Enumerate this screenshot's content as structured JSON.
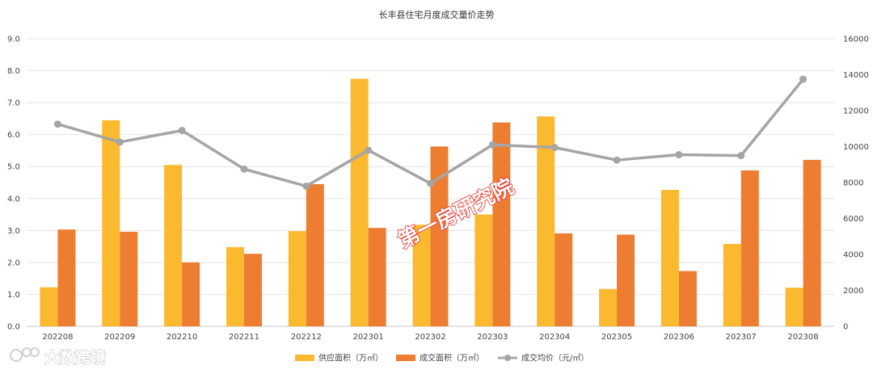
{
  "chart_data": {
    "type": "bar",
    "title": "长丰县住宅月度成交量价走势",
    "categories": [
      "202208",
      "202209",
      "202210",
      "202211",
      "202212",
      "202301",
      "202302",
      "202303",
      "202304",
      "202305",
      "202306",
      "202307",
      "202308"
    ],
    "series": [
      {
        "name": "供应面积（万㎡）",
        "type": "bar",
        "axis": "left",
        "color": "#FBB930",
        "values": [
          1.22,
          6.45,
          5.05,
          2.48,
          2.98,
          7.75,
          3.18,
          3.5,
          6.57,
          1.17,
          4.27,
          2.58,
          1.21
        ]
      },
      {
        "name": "成交面积（万㎡）",
        "type": "bar",
        "axis": "left",
        "color": "#ED7D31",
        "values": [
          3.03,
          2.96,
          2.0,
          2.27,
          4.45,
          3.08,
          5.63,
          6.38,
          2.91,
          2.87,
          1.73,
          4.88,
          5.21
        ]
      },
      {
        "name": "成交均价（元/㎡）",
        "type": "line",
        "axis": "right",
        "color": "#A5A5A5",
        "values": [
          11250,
          10250,
          10900,
          8750,
          7800,
          9800,
          7950,
          10100,
          9950,
          9250,
          9550,
          9500,
          13750
        ]
      }
    ],
    "y_left": {
      "range": [
        0,
        9
      ],
      "ticks": [
        "0.0",
        "1.0",
        "2.0",
        "3.0",
        "4.0",
        "5.0",
        "6.0",
        "7.0",
        "8.0",
        "9.0"
      ]
    },
    "y_right": {
      "range": [
        0,
        16000
      ],
      "ticks": [
        "0",
        "2000",
        "4000",
        "6000",
        "8000",
        "10000",
        "12000",
        "14000",
        "16000"
      ]
    },
    "grid": true,
    "legend_position": "bottom"
  },
  "watermark": "第一房研究院",
  "logo_text": "大数跨境"
}
